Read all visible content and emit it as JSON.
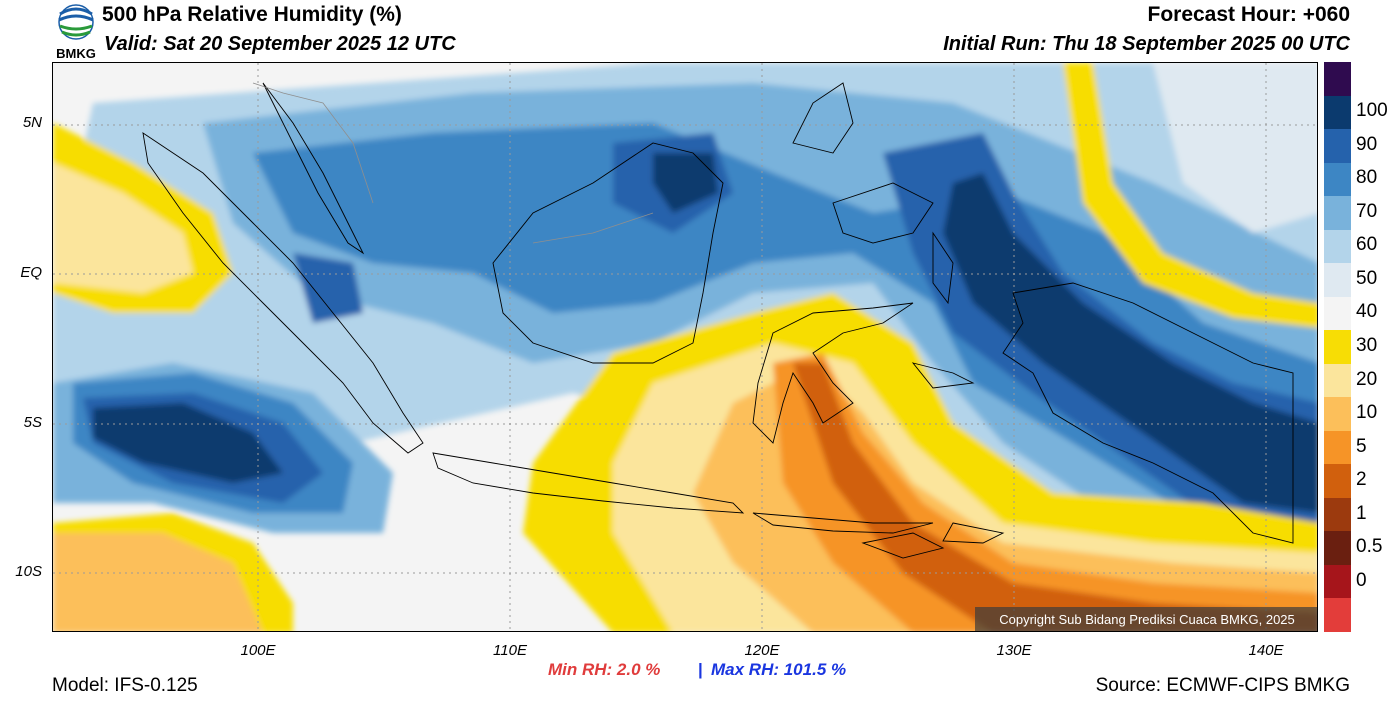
{
  "header": {
    "title": "500 hPa Relative Humidity (%)",
    "valid": "Valid: Sat 20 September 2025 12 UTC",
    "forecast_hour": "Forecast Hour: +060",
    "initial_run": "Initial Run: Thu 18 September 2025 00 UTC",
    "logo_text": "BMKG"
  },
  "map": {
    "lat_labels": [
      "5N",
      "EQ",
      "5S",
      "10S"
    ],
    "lon_labels": [
      "100E",
      "110E",
      "120E",
      "130E",
      "140E"
    ],
    "copyright": "Copyright Sub Bidang Prediksi Cuaca BMKG, 2025",
    "background_color": "#f4f4f4"
  },
  "colorbar": {
    "labels": [
      "100",
      "90",
      "80",
      "70",
      "60",
      "50",
      "40",
      "30",
      "20",
      "10",
      "5",
      "2",
      "1",
      "0.5",
      "0"
    ],
    "colors": [
      "#2f0b4f",
      "#0b3a6e",
      "#2562ac",
      "#3d86c4",
      "#79b2db",
      "#b3d4ea",
      "#dfe9f1",
      "#f4f4f4",
      "#f7dd05",
      "#fbe59c",
      "#fcbf5a",
      "#f69427",
      "#d1600d",
      "#9c3a0e",
      "#6a1f10",
      "#a6151b",
      "#e33d3a"
    ]
  },
  "footer": {
    "min_rh": "Min RH:   2.0 %",
    "separator": "|",
    "max_rh": "Max RH: 101.5 %",
    "model": "Model: IFS-0.125",
    "source": "Source: ECMWF-CIPS BMKG"
  }
}
